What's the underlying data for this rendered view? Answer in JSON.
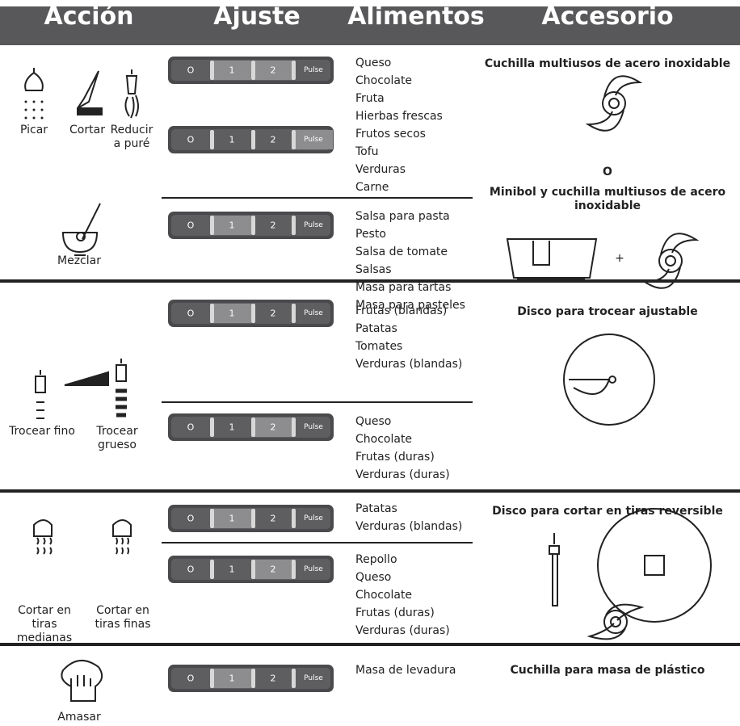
{
  "header": {
    "columns": [
      "Acción",
      "Ajuste",
      "Alimentos",
      "Accesorio"
    ]
  },
  "dial_labels": [
    "O",
    "1",
    "2",
    "Pulse"
  ],
  "sections": [
    {
      "actions": [
        "Picar",
        "Cortar",
        "Reducir a puré",
        "Mezclar"
      ],
      "rows": [
        {
          "highlight": [
            1,
            2
          ],
          "foods": [
            "Queso",
            "Chocolate",
            "Fruta",
            "Hierbas frescas",
            "Frutos secos",
            "Tofu",
            "Verduras",
            "Carne"
          ]
        },
        {
          "highlight": [
            3
          ],
          "foods": []
        },
        {
          "highlight": [
            1
          ],
          "foods": [
            "Salsa para pasta",
            "Pesto",
            "Salsa de tomate",
            "Salsas",
            "Masa para tartas",
            "Masa para pasteles"
          ]
        }
      ],
      "accessory": {
        "title": "Cuchilla multiusos de acero inoxidable",
        "or": "O",
        "title2": "Minibol y cuchilla multiusos de acero inoxidable",
        "plus": "+"
      }
    },
    {
      "actions": [
        "Trocear fino",
        "Trocear grueso"
      ],
      "rows": [
        {
          "highlight": [
            1
          ],
          "foods": [
            "Frutas (blandas)",
            "Patatas",
            "Tomates",
            "Verduras (blandas)"
          ]
        },
        {
          "highlight": [
            2
          ],
          "foods": [
            "Queso",
            "Chocolate",
            "Frutas (duras)",
            "Verduras (duras)"
          ]
        }
      ],
      "accessory": {
        "title": "Disco para trocear ajustable"
      }
    },
    {
      "actions": [
        "Cortar en tiras medianas",
        "Cortar en tiras finas"
      ],
      "rows": [
        {
          "highlight": [
            1
          ],
          "foods": [
            "Patatas",
            "Verduras (blandas)"
          ]
        },
        {
          "highlight": [
            2
          ],
          "foods": [
            "Repollo",
            "Queso",
            "Chocolate",
            "Frutas (duras)",
            "Verduras (duras)"
          ]
        }
      ],
      "accessory": {
        "title": "Disco para cortar en tiras reversible"
      }
    },
    {
      "actions": [
        "Amasar"
      ],
      "rows": [
        {
          "highlight": [
            1
          ],
          "foods": [
            "Masa de levadura"
          ]
        }
      ],
      "accessory": {
        "title": "Cuchilla para masa de plástico"
      }
    }
  ]
}
